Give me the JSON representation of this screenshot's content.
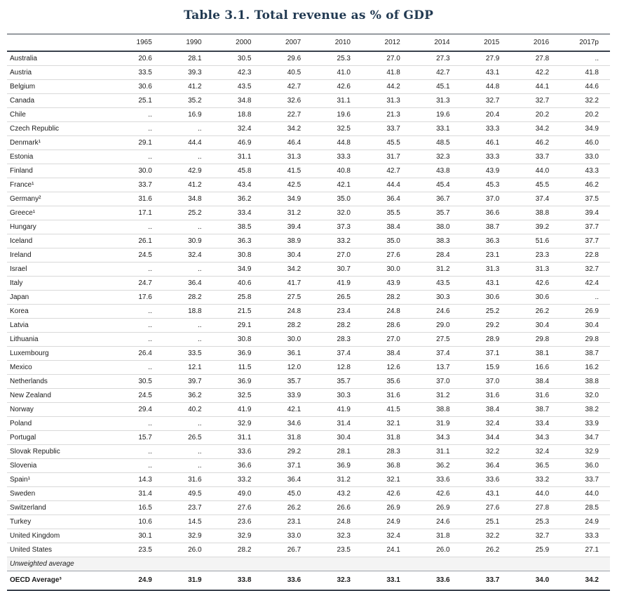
{
  "title": "Table 3.1. Total revenue as % of GDP",
  "colors": {
    "title_color": "#223a52",
    "dark_line": "#3a424d",
    "light_line": "#d9d9d9",
    "text_color": "#1a1a1a"
  },
  "table": {
    "columns": [
      "1965",
      "1990",
      "2000",
      "2007",
      "2010",
      "2012",
      "2014",
      "2015",
      "2016",
      "2017p"
    ],
    "rows": [
      {
        "country": "Australia",
        "values": [
          "20.6",
          "28.1",
          "30.5",
          "29.6",
          "25.3",
          "27.0",
          "27.3",
          "27.9",
          "27.8",
          ".."
        ]
      },
      {
        "country": "Austria",
        "values": [
          "33.5",
          "39.3",
          "42.3",
          "40.5",
          "41.0",
          "41.8",
          "42.7",
          "43.1",
          "42.2",
          "41.8"
        ]
      },
      {
        "country": "Belgium",
        "values": [
          "30.6",
          "41.2",
          "43.5",
          "42.7",
          "42.6",
          "44.2",
          "45.1",
          "44.8",
          "44.1",
          "44.6"
        ]
      },
      {
        "country": "Canada",
        "values": [
          "25.1",
          "35.2",
          "34.8",
          "32.6",
          "31.1",
          "31.3",
          "31.3",
          "32.7",
          "32.7",
          "32.2"
        ]
      },
      {
        "country": "Chile",
        "values": [
          "..",
          "16.9",
          "18.8",
          "22.7",
          "19.6",
          "21.3",
          "19.6",
          "20.4",
          "20.2",
          "20.2"
        ]
      },
      {
        "country": "Czech Republic",
        "values": [
          "..",
          "..",
          "32.4",
          "34.2",
          "32.5",
          "33.7",
          "33.1",
          "33.3",
          "34.2",
          "34.9"
        ]
      },
      {
        "country": "Denmark¹",
        "values": [
          "29.1",
          "44.4",
          "46.9",
          "46.4",
          "44.8",
          "45.5",
          "48.5",
          "46.1",
          "46.2",
          "46.0"
        ]
      },
      {
        "country": "Estonia",
        "values": [
          "..",
          "..",
          "31.1",
          "31.3",
          "33.3",
          "31.7",
          "32.3",
          "33.3",
          "33.7",
          "33.0"
        ]
      },
      {
        "country": "Finland",
        "values": [
          "30.0",
          "42.9",
          "45.8",
          "41.5",
          "40.8",
          "42.7",
          "43.8",
          "43.9",
          "44.0",
          "43.3"
        ]
      },
      {
        "country": "France¹",
        "values": [
          "33.7",
          "41.2",
          "43.4",
          "42.5",
          "42.1",
          "44.4",
          "45.4",
          "45.3",
          "45.5",
          "46.2"
        ]
      },
      {
        "country": "Germany²",
        "values": [
          "31.6",
          "34.8",
          "36.2",
          "34.9",
          "35.0",
          "36.4",
          "36.7",
          "37.0",
          "37.4",
          "37.5"
        ]
      },
      {
        "country": "Greece¹",
        "values": [
          "17.1",
          "25.2",
          "33.4",
          "31.2",
          "32.0",
          "35.5",
          "35.7",
          "36.6",
          "38.8",
          "39.4"
        ]
      },
      {
        "country": "Hungary",
        "values": [
          "..",
          "..",
          "38.5",
          "39.4",
          "37.3",
          "38.4",
          "38.0",
          "38.7",
          "39.2",
          "37.7"
        ]
      },
      {
        "country": "Iceland",
        "values": [
          "26.1",
          "30.9",
          "36.3",
          "38.9",
          "33.2",
          "35.0",
          "38.3",
          "36.3",
          "51.6",
          "37.7"
        ]
      },
      {
        "country": "Ireland",
        "values": [
          "24.5",
          "32.4",
          "30.8",
          "30.4",
          "27.0",
          "27.6",
          "28.4",
          "23.1",
          "23.3",
          "22.8"
        ]
      },
      {
        "country": "Israel",
        "values": [
          "..",
          "..",
          "34.9",
          "34.2",
          "30.7",
          "30.0",
          "31.2",
          "31.3",
          "31.3",
          "32.7"
        ]
      },
      {
        "country": "Italy",
        "values": [
          "24.7",
          "36.4",
          "40.6",
          "41.7",
          "41.9",
          "43.9",
          "43.5",
          "43.1",
          "42.6",
          "42.4"
        ]
      },
      {
        "country": "Japan",
        "values": [
          "17.6",
          "28.2",
          "25.8",
          "27.5",
          "26.5",
          "28.2",
          "30.3",
          "30.6",
          "30.6",
          ".."
        ]
      },
      {
        "country": "Korea",
        "values": [
          "..",
          "18.8",
          "21.5",
          "24.8",
          "23.4",
          "24.8",
          "24.6",
          "25.2",
          "26.2",
          "26.9"
        ]
      },
      {
        "country": "Latvia",
        "values": [
          "..",
          "..",
          "29.1",
          "28.2",
          "28.2",
          "28.6",
          "29.0",
          "29.2",
          "30.4",
          "30.4"
        ]
      },
      {
        "country": "Lithuania",
        "values": [
          "..",
          "..",
          "30.8",
          "30.0",
          "28.3",
          "27.0",
          "27.5",
          "28.9",
          "29.8",
          "29.8"
        ]
      },
      {
        "country": "Luxembourg",
        "values": [
          "26.4",
          "33.5",
          "36.9",
          "36.1",
          "37.4",
          "38.4",
          "37.4",
          "37.1",
          "38.1",
          "38.7"
        ]
      },
      {
        "country": "Mexico",
        "values": [
          "..",
          "12.1",
          "11.5",
          "12.0",
          "12.8",
          "12.6",
          "13.7",
          "15.9",
          "16.6",
          "16.2"
        ]
      },
      {
        "country": "Netherlands",
        "values": [
          "30.5",
          "39.7",
          "36.9",
          "35.7",
          "35.7",
          "35.6",
          "37.0",
          "37.0",
          "38.4",
          "38.8"
        ]
      },
      {
        "country": "New Zealand",
        "values": [
          "24.5",
          "36.2",
          "32.5",
          "33.9",
          "30.3",
          "31.6",
          "31.2",
          "31.6",
          "31.6",
          "32.0"
        ]
      },
      {
        "country": "Norway",
        "values": [
          "29.4",
          "40.2",
          "41.9",
          "42.1",
          "41.9",
          "41.5",
          "38.8",
          "38.4",
          "38.7",
          "38.2"
        ]
      },
      {
        "country": "Poland",
        "values": [
          "..",
          "..",
          "32.9",
          "34.6",
          "31.4",
          "32.1",
          "31.9",
          "32.4",
          "33.4",
          "33.9"
        ]
      },
      {
        "country": "Portugal",
        "values": [
          "15.7",
          "26.5",
          "31.1",
          "31.8",
          "30.4",
          "31.8",
          "34.3",
          "34.4",
          "34.3",
          "34.7"
        ]
      },
      {
        "country": "Slovak Republic",
        "values": [
          "..",
          "..",
          "33.6",
          "29.2",
          "28.1",
          "28.3",
          "31.1",
          "32.2",
          "32.4",
          "32.9"
        ]
      },
      {
        "country": "Slovenia",
        "values": [
          "..",
          "..",
          "36.6",
          "37.1",
          "36.9",
          "36.8",
          "36.2",
          "36.4",
          "36.5",
          "36.0"
        ]
      },
      {
        "country": "Spain¹",
        "values": [
          "14.3",
          "31.6",
          "33.2",
          "36.4",
          "31.2",
          "32.1",
          "33.6",
          "33.6",
          "33.2",
          "33.7"
        ]
      },
      {
        "country": "Sweden",
        "values": [
          "31.4",
          "49.5",
          "49.0",
          "45.0",
          "43.2",
          "42.6",
          "42.6",
          "43.1",
          "44.0",
          "44.0"
        ]
      },
      {
        "country": "Switzerland",
        "values": [
          "16.5",
          "23.7",
          "27.6",
          "26.2",
          "26.6",
          "26.9",
          "26.9",
          "27.6",
          "27.8",
          "28.5"
        ]
      },
      {
        "country": "Turkey",
        "values": [
          "10.6",
          "14.5",
          "23.6",
          "23.1",
          "24.8",
          "24.9",
          "24.6",
          "25.1",
          "25.3",
          "24.9"
        ]
      },
      {
        "country": "United Kingdom",
        "values": [
          "30.1",
          "32.9",
          "32.9",
          "33.0",
          "32.3",
          "32.4",
          "31.8",
          "32.2",
          "32.7",
          "33.3"
        ]
      },
      {
        "country": "United States",
        "values": [
          "23.5",
          "26.0",
          "28.2",
          "26.7",
          "23.5",
          "24.1",
          "26.0",
          "26.2",
          "25.9",
          "27.1"
        ]
      }
    ],
    "unweighted_label": "Unweighted average",
    "oecd_row": {
      "country": "OECD Average³",
      "values": [
        "24.9",
        "31.9",
        "33.8",
        "33.6",
        "32.3",
        "33.1",
        "33.6",
        "33.7",
        "34.0",
        "34.2"
      ]
    }
  }
}
